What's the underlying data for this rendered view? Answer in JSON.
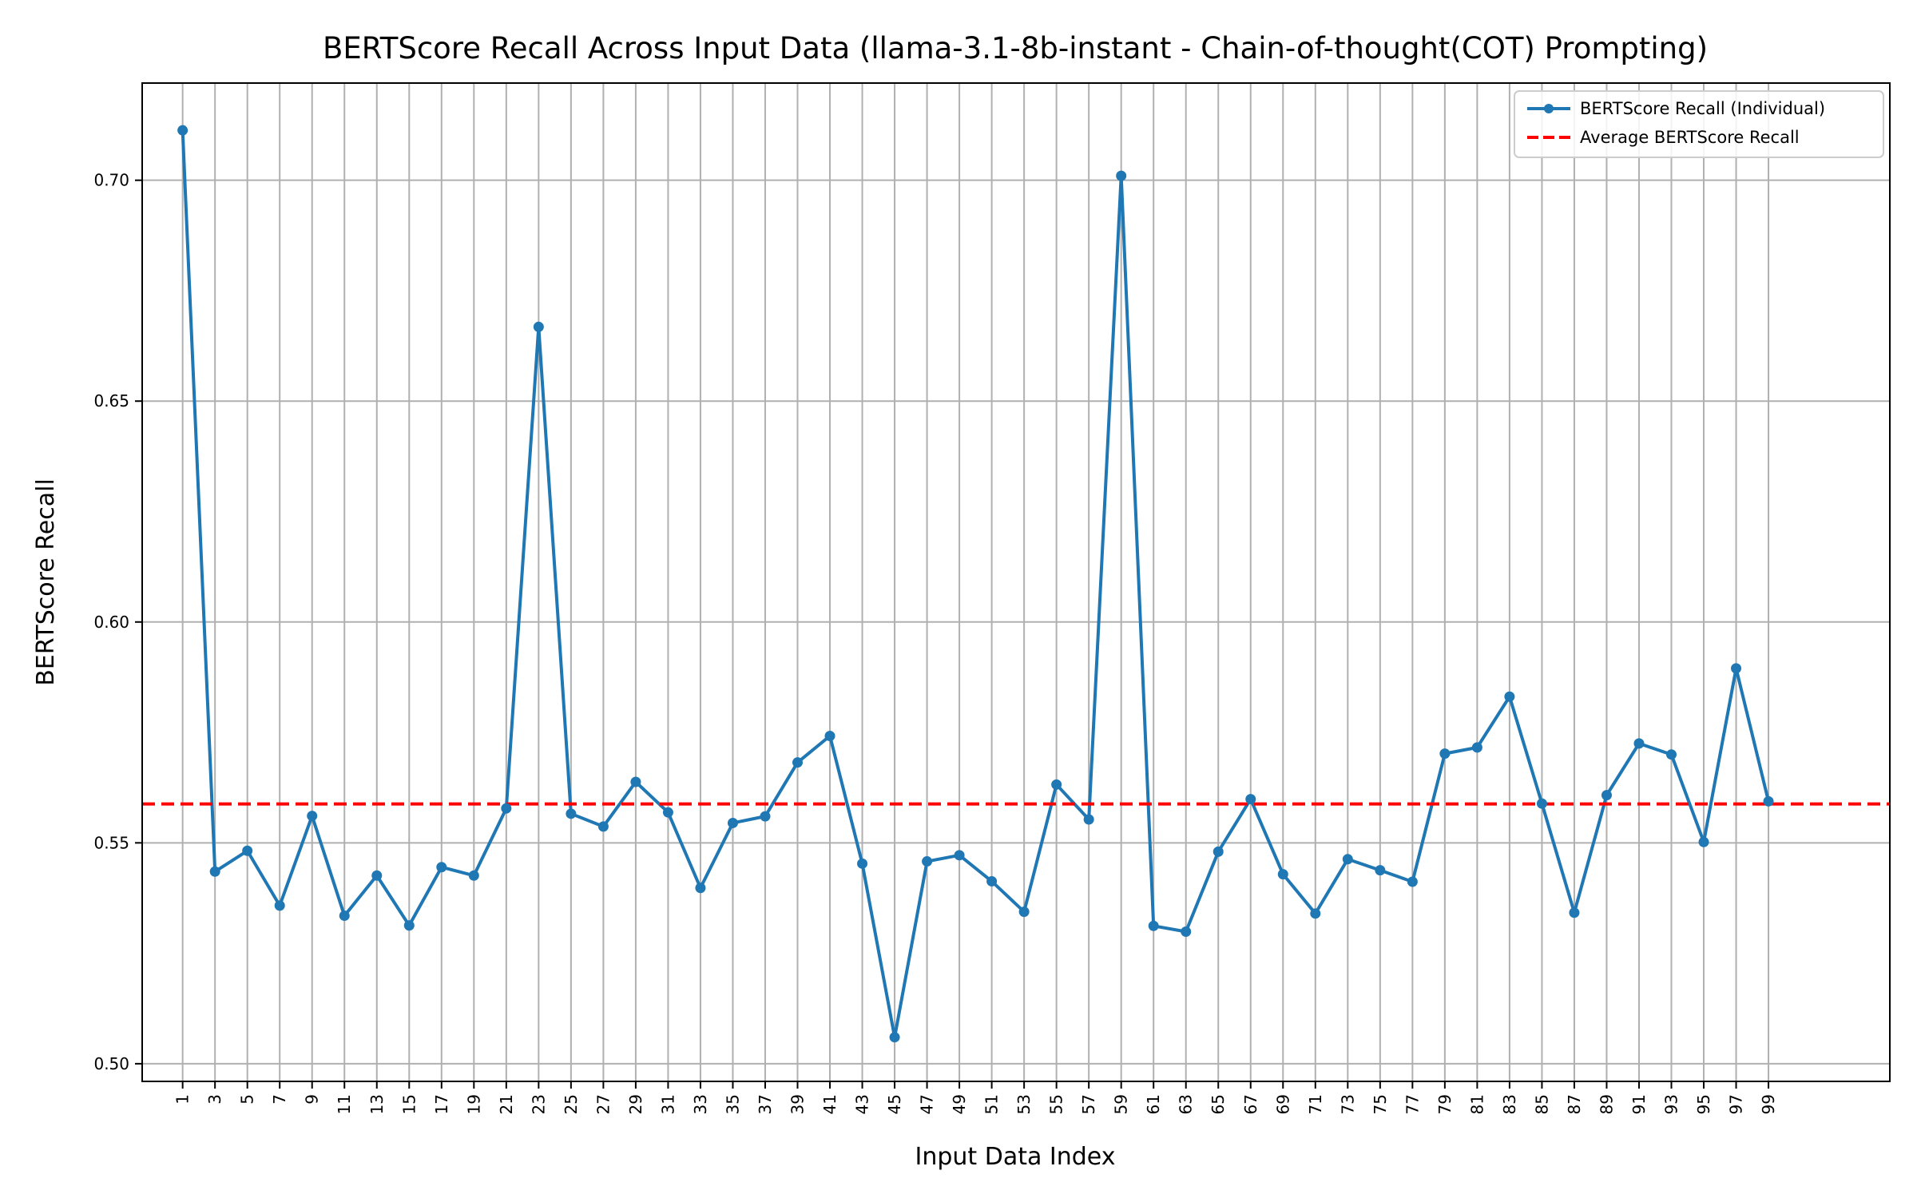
{
  "chart_data": {
    "type": "line",
    "title": "BERTScore Recall Across Input Data (llama-3.1-8b-instant - Chain-of-thought(COT) Prompting)",
    "xlabel": "Input Data Index",
    "ylabel": "BERTScore Recall",
    "xlim": [
      -1.5,
      106.5
    ],
    "ylim": [
      0.496,
      0.722
    ],
    "grid": true,
    "legend_position": "top-right",
    "x": [
      1,
      3,
      5,
      7,
      9,
      11,
      13,
      15,
      17,
      19,
      21,
      23,
      25,
      27,
      29,
      31,
      33,
      35,
      37,
      39,
      41,
      43,
      45,
      47,
      49,
      51,
      53,
      55,
      57,
      59,
      61,
      63,
      65,
      67,
      69,
      71,
      73,
      75,
      77,
      79,
      81,
      83,
      85,
      87,
      89,
      91,
      93,
      95,
      97,
      99
    ],
    "xticks": [
      "1",
      "3",
      "5",
      "7",
      "9",
      "11",
      "13",
      "15",
      "17",
      "19",
      "21",
      "23",
      "25",
      "27",
      "29",
      "31",
      "33",
      "35",
      "37",
      "39",
      "41",
      "43",
      "45",
      "47",
      "49",
      "51",
      "53",
      "55",
      "57",
      "59",
      "61",
      "63",
      "65",
      "67",
      "69",
      "71",
      "73",
      "75",
      "77",
      "79",
      "81",
      "83",
      "85",
      "87",
      "89",
      "91",
      "93",
      "95",
      "97",
      "99"
    ],
    "yticks": [
      "0.50",
      "0.55",
      "0.60",
      "0.65",
      "0.70"
    ],
    "series": [
      {
        "name": "BERTScore Recall (Individual)",
        "color": "#1f77b4",
        "style": "solid-with-markers",
        "values": [
          0.7113,
          0.5435,
          0.5482,
          0.5358,
          0.5561,
          0.5335,
          0.5426,
          0.5313,
          0.5445,
          0.5426,
          0.5578,
          0.6668,
          0.5566,
          0.5537,
          0.5638,
          0.5569,
          0.5398,
          0.5545,
          0.556,
          0.5682,
          0.5742,
          0.5453,
          0.506,
          0.5458,
          0.5472,
          0.5413,
          0.5344,
          0.5632,
          0.5553,
          0.701,
          0.5312,
          0.5299,
          0.548,
          0.5599,
          0.5429,
          0.534,
          0.5463,
          0.5438,
          0.5412,
          0.5702,
          0.5716,
          0.5831,
          0.5589,
          0.5342,
          0.5608,
          0.5725,
          0.57,
          0.5502,
          0.5895,
          0.5594
        ]
      },
      {
        "name": "Average BERTScore Recall",
        "color": "#ff0000",
        "style": "dashed",
        "value": 0.5588
      }
    ]
  }
}
